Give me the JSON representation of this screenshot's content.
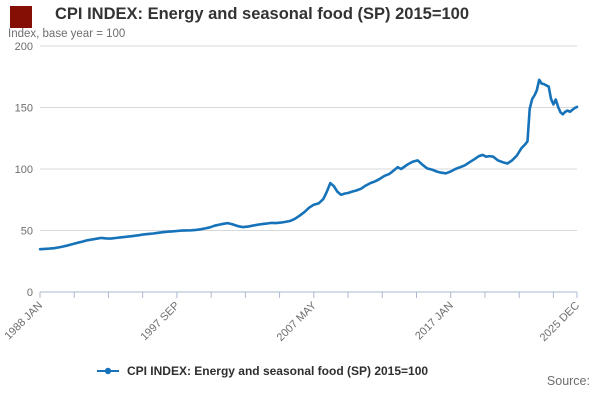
{
  "header": {
    "title": "CPI INDEX: Energy and seasonal food (SP) 2015=100",
    "subtitle": "Index, base year = 100"
  },
  "legend": {
    "label": "CPI INDEX: Energy and seasonal food (SP) 2015=100"
  },
  "source": {
    "label": "Source:"
  },
  "colors": {
    "line": "#1673b9",
    "grid": "#d9d9d9",
    "axis": "#aab8cf",
    "logo": "#850e05",
    "title_text": "#333333",
    "muted_text": "#6e6e6e"
  },
  "chart_data": {
    "type": "line",
    "title": "CPI INDEX: Energy and seasonal food (SP) 2015=100",
    "ylabel": "Index, base year = 100",
    "ylim": [
      0,
      200
    ],
    "y_ticks": [
      0,
      50,
      100,
      150,
      200
    ],
    "grid": true,
    "legend_position": "bottom-center",
    "x_total_months": 455,
    "x_start_year": 1988,
    "x_ticks_months": [
      0,
      29,
      58,
      87,
      116,
      145,
      174,
      203,
      232,
      261,
      290,
      319,
      348,
      377,
      406,
      435,
      455
    ],
    "x_labels": [
      {
        "month": 0,
        "label": "1988 JAN"
      },
      {
        "month": 116,
        "label": "1997 SEP"
      },
      {
        "month": 232,
        "label": "2007 MAY"
      },
      {
        "month": 348,
        "label": "2017 JAN"
      },
      {
        "month": 455,
        "label": "2025 DEC"
      }
    ],
    "series": [
      {
        "name": "CPI INDEX: Energy and seasonal food (SP) 2015=100",
        "points": [
          [
            1988.0,
            34.8
          ],
          [
            1988.33,
            35.0
          ],
          [
            1988.67,
            35.3
          ],
          [
            1989.0,
            35.6
          ],
          [
            1989.33,
            36.3
          ],
          [
            1989.67,
            37.1
          ],
          [
            1990.0,
            38.0
          ],
          [
            1990.33,
            39.0
          ],
          [
            1990.67,
            40.1
          ],
          [
            1991.0,
            41.0
          ],
          [
            1991.33,
            42.0
          ],
          [
            1991.67,
            42.7
          ],
          [
            1992.0,
            43.3
          ],
          [
            1992.33,
            44.0
          ],
          [
            1992.67,
            43.6
          ],
          [
            1993.0,
            43.4
          ],
          [
            1993.33,
            43.9
          ],
          [
            1993.67,
            44.4
          ],
          [
            1994.0,
            44.8
          ],
          [
            1994.33,
            45.2
          ],
          [
            1994.67,
            45.7
          ],
          [
            1995.0,
            46.2
          ],
          [
            1995.33,
            46.8
          ],
          [
            1995.67,
            47.2
          ],
          [
            1996.0,
            47.6
          ],
          [
            1996.33,
            48.1
          ],
          [
            1996.67,
            48.6
          ],
          [
            1997.0,
            49.0
          ],
          [
            1997.33,
            49.3
          ],
          [
            1997.67,
            49.6
          ],
          [
            1998.0,
            49.9
          ],
          [
            1998.33,
            50.1
          ],
          [
            1998.67,
            50.2
          ],
          [
            1999.0,
            50.5
          ],
          [
            1999.33,
            51.0
          ],
          [
            1999.67,
            51.7
          ],
          [
            2000.0,
            52.6
          ],
          [
            2000.33,
            53.9
          ],
          [
            2000.67,
            54.8
          ],
          [
            2001.0,
            55.5
          ],
          [
            2001.25,
            56.0
          ],
          [
            2001.58,
            55.0
          ],
          [
            2002.0,
            53.5
          ],
          [
            2002.33,
            52.8
          ],
          [
            2002.67,
            53.2
          ],
          [
            2003.0,
            53.9
          ],
          [
            2003.33,
            54.6
          ],
          [
            2003.67,
            55.2
          ],
          [
            2004.0,
            55.6
          ],
          [
            2004.33,
            56.2
          ],
          [
            2004.67,
            56.0
          ],
          [
            2005.0,
            56.4
          ],
          [
            2005.33,
            57.0
          ],
          [
            2005.67,
            57.8
          ],
          [
            2006.0,
            59.5
          ],
          [
            2006.33,
            62.0
          ],
          [
            2006.67,
            65.0
          ],
          [
            2007.0,
            68.5
          ],
          [
            2007.33,
            71.0
          ],
          [
            2007.67,
            72.0
          ],
          [
            2008.0,
            75.5
          ],
          [
            2008.25,
            81.5
          ],
          [
            2008.5,
            88.5
          ],
          [
            2008.75,
            86.0
          ],
          [
            2009.0,
            81.5
          ],
          [
            2009.25,
            79.0
          ],
          [
            2009.5,
            80.0
          ],
          [
            2009.75,
            80.5
          ],
          [
            2010.0,
            81.5
          ],
          [
            2010.33,
            82.5
          ],
          [
            2010.67,
            84.0
          ],
          [
            2011.0,
            86.5
          ],
          [
            2011.33,
            88.5
          ],
          [
            2011.67,
            90.0
          ],
          [
            2012.0,
            92.0
          ],
          [
            2012.33,
            94.5
          ],
          [
            2012.67,
            96.0
          ],
          [
            2013.0,
            99.0
          ],
          [
            2013.25,
            101.5
          ],
          [
            2013.5,
            100.0
          ],
          [
            2013.75,
            102.0
          ],
          [
            2014.0,
            104.0
          ],
          [
            2014.33,
            106.0
          ],
          [
            2014.67,
            107.0
          ],
          [
            2015.0,
            103.5
          ],
          [
            2015.33,
            100.5
          ],
          [
            2015.67,
            99.5
          ],
          [
            2016.0,
            98.0
          ],
          [
            2016.33,
            97.0
          ],
          [
            2016.67,
            96.5
          ],
          [
            2017.0,
            98.0
          ],
          [
            2017.33,
            100.0
          ],
          [
            2017.67,
            101.5
          ],
          [
            2018.0,
            103.0
          ],
          [
            2018.33,
            105.5
          ],
          [
            2018.67,
            108.0
          ],
          [
            2019.0,
            110.5
          ],
          [
            2019.25,
            111.5
          ],
          [
            2019.5,
            110.0
          ],
          [
            2019.75,
            110.5
          ],
          [
            2020.0,
            110.0
          ],
          [
            2020.33,
            107.0
          ],
          [
            2020.67,
            105.5
          ],
          [
            2021.0,
            104.5
          ],
          [
            2021.33,
            107.0
          ],
          [
            2021.67,
            111.0
          ],
          [
            2022.0,
            117.0
          ],
          [
            2022.25,
            120.0
          ],
          [
            2022.42,
            122.5
          ],
          [
            2022.58,
            149.0
          ],
          [
            2022.75,
            157.0
          ],
          [
            2022.92,
            160.0
          ],
          [
            2023.08,
            164.0
          ],
          [
            2023.25,
            172.5
          ],
          [
            2023.42,
            169.5
          ],
          [
            2023.58,
            169.0
          ],
          [
            2023.75,
            168.0
          ],
          [
            2023.92,
            167.0
          ],
          [
            2024.08,
            157.0
          ],
          [
            2024.25,
            152.5
          ],
          [
            2024.42,
            156.5
          ],
          [
            2024.58,
            150.5
          ],
          [
            2024.75,
            146.0
          ],
          [
            2024.92,
            144.5
          ],
          [
            2025.08,
            146.5
          ],
          [
            2025.25,
            147.5
          ],
          [
            2025.42,
            146.5
          ],
          [
            2025.58,
            148.0
          ],
          [
            2025.75,
            149.5
          ],
          [
            2025.92,
            150.5
          ]
        ]
      }
    ]
  }
}
